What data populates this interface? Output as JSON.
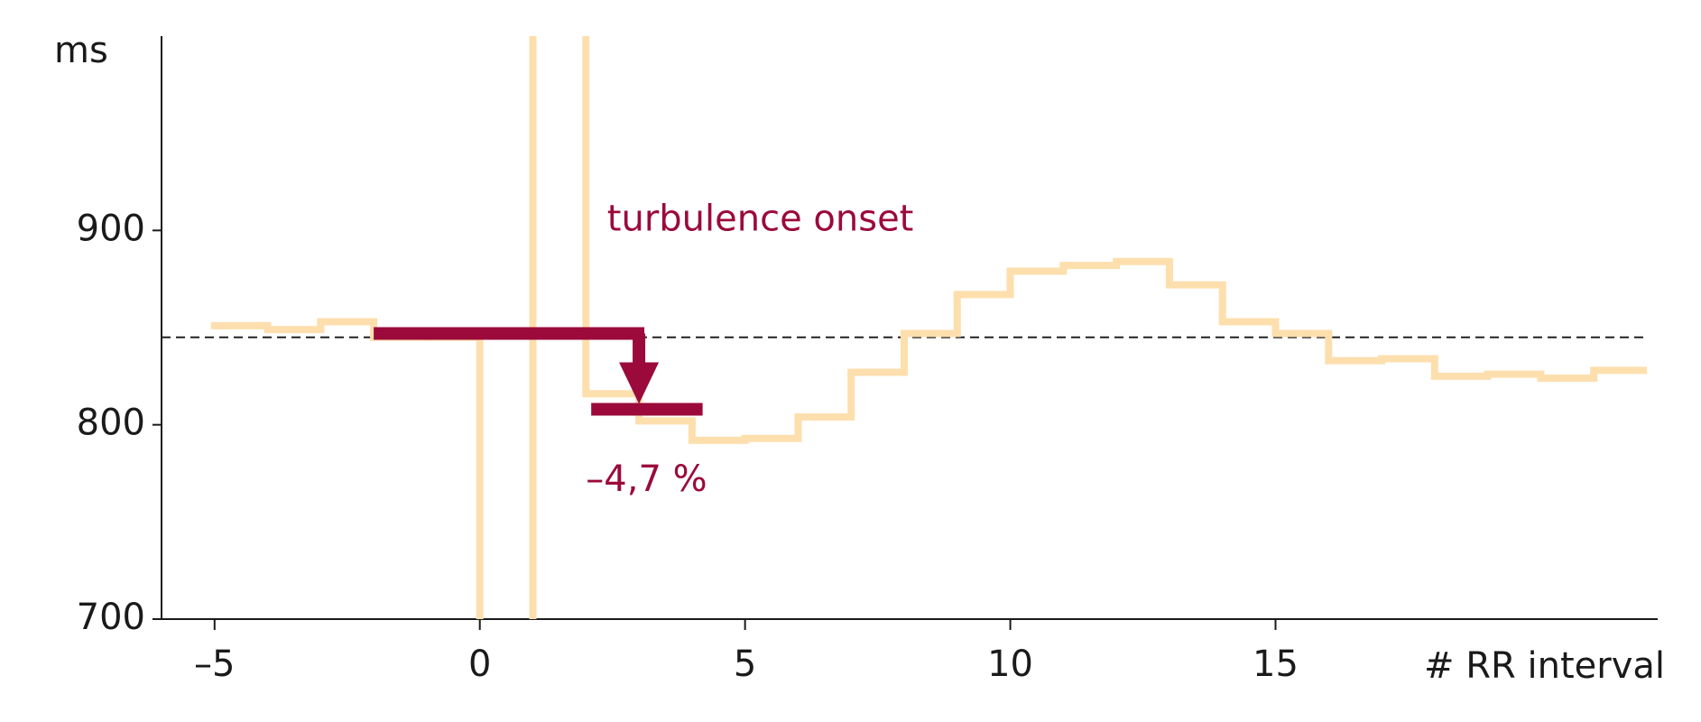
{
  "chart_data": {
    "type": "step",
    "y_label": "ms",
    "x_label": "# RR interval",
    "x": [
      -5,
      -4,
      -3,
      -2,
      -1,
      0,
      1,
      2,
      3,
      4,
      5,
      6,
      7,
      8,
      9,
      10,
      11,
      12,
      13,
      14,
      15,
      16,
      17,
      18,
      19,
      20,
      21
    ],
    "series": [
      {
        "color": "#fddfae",
        "values": [
          851,
          849,
          853,
          845,
          845,
          650,
          1050,
          816,
          802,
          792,
          793,
          804,
          827,
          847,
          867,
          879,
          882,
          884,
          872,
          853,
          847,
          833,
          834,
          825,
          826,
          824,
          828
        ]
      }
    ],
    "reference": 845,
    "onset_color": "#9b0a3a",
    "onset_before": {
      "from": -2,
      "to": 3,
      "value": 847
    },
    "onset_after": {
      "from": 2.1,
      "to": 4.2,
      "value": 808
    },
    "annotations": [
      "turbulence onset",
      "–4,7 %"
    ],
    "xlim": [
      -6,
      22
    ],
    "ylim": [
      700,
      1000
    ],
    "xticks": [
      {
        "value": -5,
        "label": "–5"
      },
      0,
      5,
      10,
      15
    ],
    "yticks": [
      700,
      800,
      900
    ]
  }
}
